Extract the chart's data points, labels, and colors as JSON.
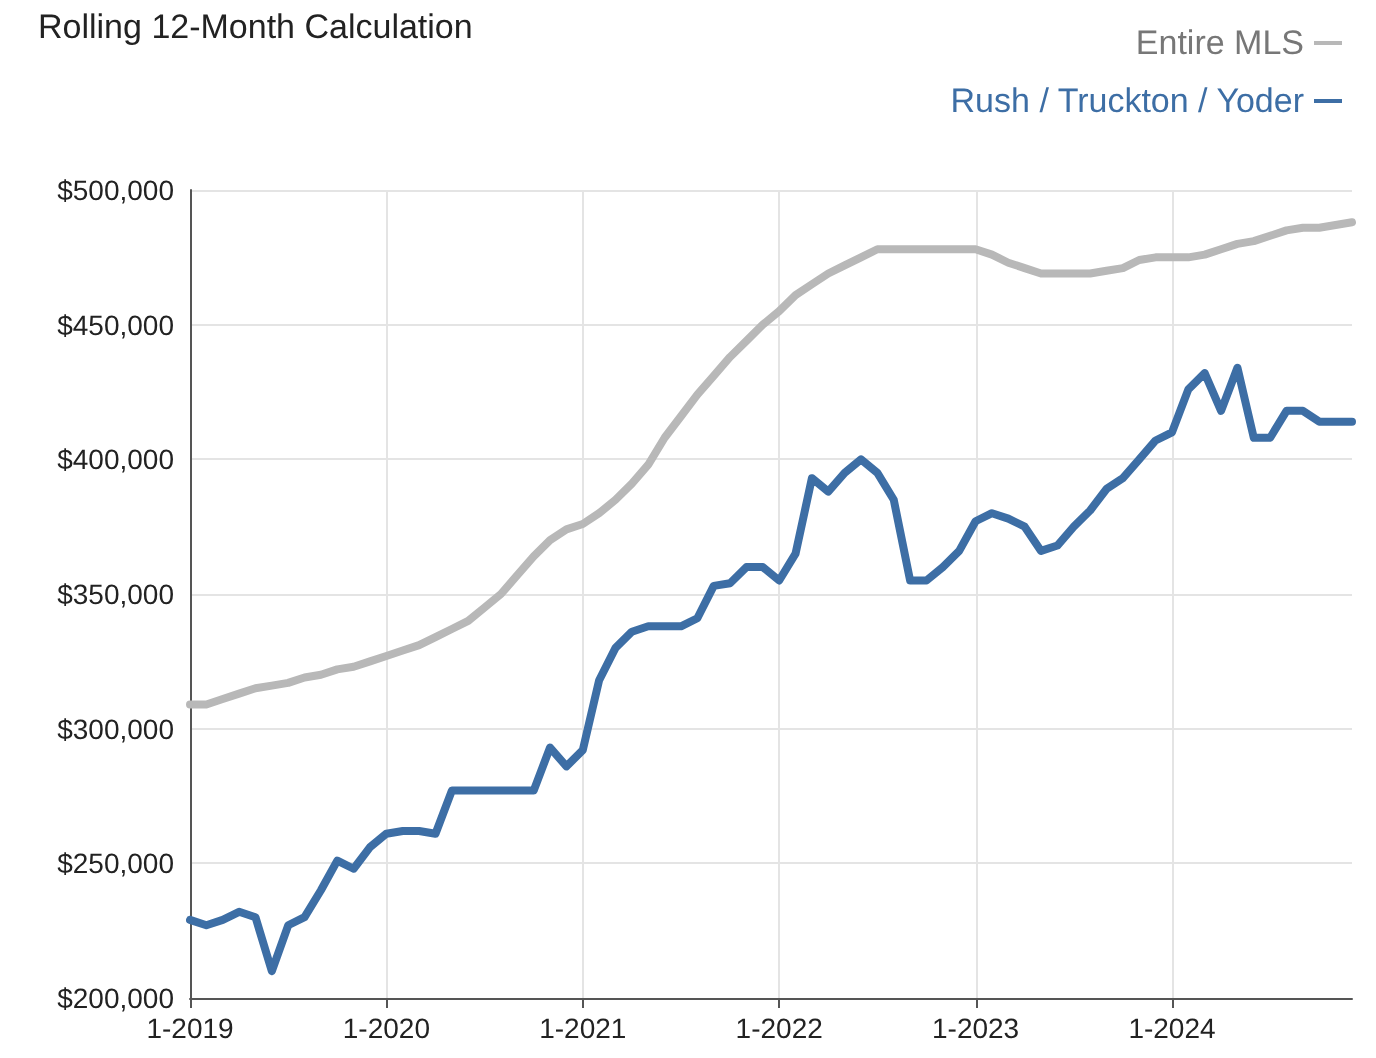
{
  "chart_data": {
    "type": "line",
    "title": "Rolling 12-Month Calculation",
    "categories": [
      "1-2019",
      null,
      null,
      null,
      null,
      null,
      null,
      null,
      null,
      null,
      null,
      null,
      "1-2020",
      null,
      null,
      null,
      null,
      null,
      null,
      null,
      null,
      null,
      null,
      null,
      "1-2021",
      null,
      null,
      null,
      null,
      null,
      null,
      null,
      null,
      null,
      null,
      null,
      "1-2022",
      null,
      null,
      null,
      null,
      null,
      null,
      null,
      null,
      null,
      null,
      null,
      "1-2023",
      null,
      null,
      null,
      null,
      null,
      null,
      null,
      null,
      null,
      null,
      null,
      "1-2024",
      null,
      null,
      null,
      null,
      null,
      null,
      null,
      null,
      null,
      null,
      null
    ],
    "series": [
      {
        "name": "Entire MLS",
        "color": "#b8b8b8",
        "values": [
          309000,
          309000,
          311000,
          313000,
          315000,
          316000,
          317000,
          319000,
          320000,
          322000,
          323000,
          325000,
          327000,
          329000,
          331000,
          334000,
          337000,
          340000,
          345000,
          350000,
          357000,
          364000,
          370000,
          374000,
          376000,
          380000,
          385000,
          391000,
          398000,
          408000,
          416000,
          424000,
          431000,
          438000,
          444000,
          450000,
          455000,
          461000,
          465000,
          469000,
          472000,
          475000,
          478000,
          478000,
          478000,
          478000,
          478000,
          478000,
          478000,
          476000,
          473000,
          471000,
          469000,
          469000,
          469000,
          469000,
          470000,
          471000,
          474000,
          475000,
          475000,
          475000,
          476000,
          478000,
          480000,
          481000,
          483000,
          485000,
          486000,
          486000,
          487000,
          488000
        ]
      },
      {
        "name": "Rush / Truckton / Yoder",
        "color": "#3d6ea5",
        "values": [
          229000,
          227000,
          229000,
          232000,
          230000,
          210000,
          227000,
          230000,
          240000,
          251000,
          248000,
          256000,
          261000,
          262000,
          262000,
          261000,
          277000,
          277000,
          277000,
          277000,
          277000,
          277000,
          293000,
          286000,
          292000,
          318000,
          330000,
          336000,
          338000,
          338000,
          338000,
          341000,
          353000,
          354000,
          360000,
          360000,
          355000,
          365000,
          393000,
          388000,
          395000,
          400000,
          395000,
          385000,
          355000,
          355000,
          360000,
          366000,
          377000,
          380000,
          378000,
          375000,
          366000,
          368000,
          375000,
          381000,
          389000,
          393000,
          400000,
          407000,
          410000,
          426000,
          432000,
          418000,
          434000,
          408000,
          408000,
          418000,
          418000,
          414000,
          414000,
          414000
        ]
      }
    ],
    "ylim": [
      200000,
      500000
    ],
    "yticks": [
      {
        "value": 200000,
        "label": "$200,000"
      },
      {
        "value": 250000,
        "label": "$250,000"
      },
      {
        "value": 300000,
        "label": "$300,000"
      },
      {
        "value": 350000,
        "label": "$350,000"
      },
      {
        "value": 400000,
        "label": "$400,000"
      },
      {
        "value": 450000,
        "label": "$450,000"
      },
      {
        "value": 500000,
        "label": "$500,000"
      }
    ],
    "grid": true,
    "legend": "top right",
    "marker": "none",
    "line_style": "solid"
  }
}
